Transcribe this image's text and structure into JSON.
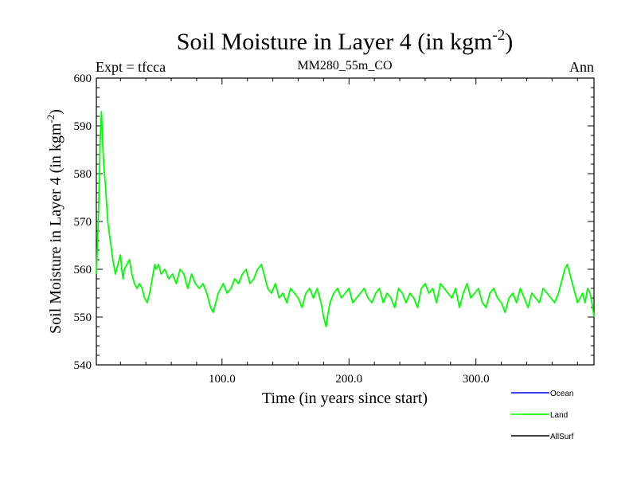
{
  "header": {
    "title": "Soil Moisture in Layer 4 (in kgm",
    "title_sup": "-2",
    "title_close": ")",
    "expt": "Expt = tfcca",
    "run": "MM280_55m_CO",
    "period": "Ann"
  },
  "chart_data": {
    "type": "line",
    "title": "Soil Moisture in Layer 4 (in kgm-2)",
    "xlabel": "Time (in years since start)",
    "ylabel": "Soil Moisture in Layer 4 (in kgm-2)",
    "ylabel_text": "Soil Moisture in Layer 4 (in kgm",
    "ylabel_sup": "-2",
    "ylabel_close": ")",
    "xlim": [
      1,
      393
    ],
    "ylim": [
      540,
      600
    ],
    "xticks": [
      100,
      200,
      300
    ],
    "xtick_labels": [
      "100.0",
      "200.0",
      "300.0"
    ],
    "yticks": [
      540,
      550,
      560,
      570,
      580,
      590,
      600
    ],
    "ytick_labels": [
      "540",
      "550",
      "560",
      "570",
      "580",
      "590",
      "600"
    ],
    "legend_position": "bottom-right",
    "series": [
      {
        "name": "Ocean",
        "color": "#0000ff",
        "x": [],
        "y": []
      },
      {
        "name": "Land",
        "color": "#00ff00",
        "x": [
          1,
          2,
          3,
          4,
          5,
          6,
          7,
          8,
          9,
          10,
          12,
          14,
          16,
          18,
          20,
          21,
          22,
          23,
          25,
          27,
          29,
          31,
          33,
          35,
          37,
          39,
          41,
          43,
          45,
          47,
          48,
          50,
          52,
          55,
          58,
          61,
          64,
          67,
          70,
          73,
          76,
          79,
          82,
          85,
          88,
          91,
          93,
          95,
          97,
          99,
          101,
          104,
          107,
          110,
          113,
          116,
          119,
          122,
          125,
          128,
          131,
          134,
          136,
          139,
          142,
          145,
          148,
          151,
          154,
          157,
          160,
          163,
          166,
          169,
          172,
          175,
          178,
          180,
          182,
          183,
          185,
          188,
          191,
          194,
          197,
          200,
          203,
          206,
          209,
          212,
          215,
          218,
          221,
          224,
          227,
          230,
          233,
          236,
          239,
          242,
          245,
          248,
          251,
          254,
          257,
          260,
          263,
          266,
          269,
          272,
          275,
          278,
          281,
          284,
          287,
          290,
          293,
          296,
          299,
          302,
          305,
          308,
          311,
          314,
          317,
          320,
          323,
          326,
          329,
          332,
          335,
          338,
          341,
          344,
          347,
          350,
          353,
          356,
          359,
          362,
          365,
          368,
          370,
          372,
          374,
          376,
          378,
          380,
          382,
          384,
          386,
          388,
          390,
          392,
          393
        ],
        "y": [
          559,
          566,
          575,
          587,
          593,
          586,
          581,
          578,
          574,
          570,
          566,
          562,
          559,
          561,
          563,
          560,
          558,
          560,
          561,
          562,
          559,
          557,
          556,
          557,
          556,
          554,
          553,
          555,
          558,
          561,
          560,
          561,
          559,
          560,
          558,
          559,
          557,
          560,
          559,
          556,
          559,
          557,
          556,
          557,
          555,
          552,
          551,
          553,
          555,
          556,
          557,
          555,
          556,
          558,
          557,
          559,
          560,
          557,
          558,
          560,
          561,
          558,
          556,
          555,
          557,
          554,
          555,
          553,
          556,
          555,
          554,
          552,
          555,
          556,
          554,
          556,
          553,
          550,
          548,
          550,
          553,
          555,
          556,
          554,
          555,
          556,
          553,
          554,
          555,
          556,
          554,
          553,
          555,
          556,
          553,
          555,
          554,
          552,
          556,
          555,
          553,
          555,
          554,
          552,
          556,
          557,
          555,
          556,
          553,
          557,
          556,
          555,
          554,
          556,
          552,
          555,
          557,
          554,
          555,
          556,
          553,
          552,
          555,
          556,
          554,
          553,
          551,
          554,
          555,
          553,
          556,
          554,
          552,
          555,
          554,
          553,
          556,
          555,
          554,
          553,
          555,
          558,
          560,
          561,
          559,
          557,
          555,
          553,
          554,
          555,
          553,
          556,
          555,
          552,
          550
        ]
      },
      {
        "name": "AllSurf",
        "color": "#000000",
        "x": [],
        "y": []
      }
    ]
  }
}
